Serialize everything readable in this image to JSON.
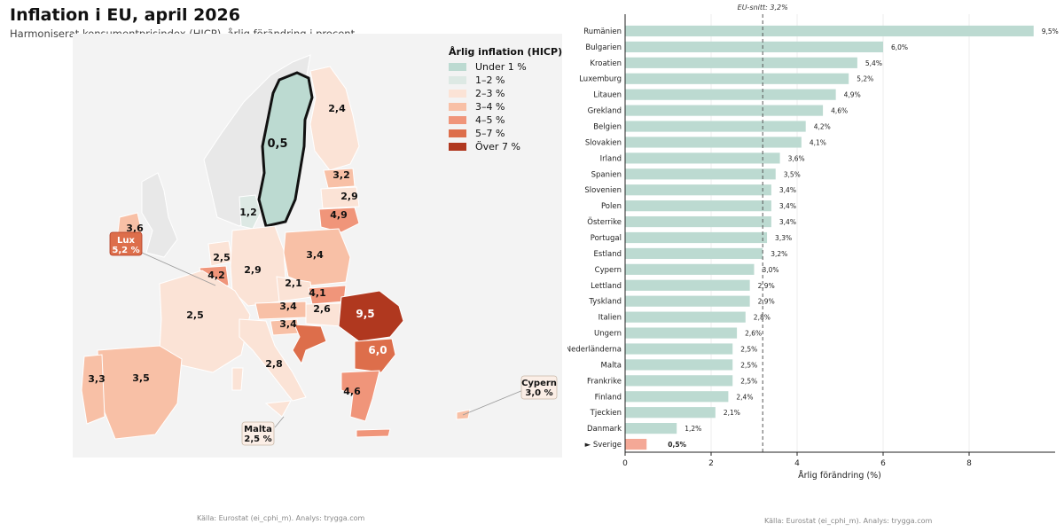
{
  "header": {
    "title": "Inflation i EU, april 2026",
    "subtitle": "Harmoniserat konsumentprisindex (HICP), årlig förändring i procent."
  },
  "legend": {
    "title": "Årlig inflation (HICP)",
    "items": [
      {
        "label": "Under 1 %",
        "color": "#bcdad1"
      },
      {
        "label": "1–2 %",
        "color": "#dde9e4"
      },
      {
        "label": "2–3 %",
        "color": "#fbe3d6"
      },
      {
        "label": "3–4 %",
        "color": "#f8c0a6"
      },
      {
        "label": "4–5 %",
        "color": "#f0957a"
      },
      {
        "label": "5–7 %",
        "color": "#dd6e4b"
      },
      {
        "label": "Över 7 %",
        "color": "#b0381f"
      }
    ]
  },
  "map_labels": [
    {
      "id": "se",
      "text": "0,5"
    },
    {
      "id": "fi",
      "text": "2,4"
    },
    {
      "id": "ee",
      "text": "3,2"
    },
    {
      "id": "lv",
      "text": "2,9"
    },
    {
      "id": "lt",
      "text": "4,9"
    },
    {
      "id": "dk",
      "text": "1,2"
    },
    {
      "id": "ie",
      "text": "3,6"
    },
    {
      "id": "nl",
      "text": "2,5"
    },
    {
      "id": "be",
      "text": "4,2"
    },
    {
      "id": "de",
      "text": "2,9"
    },
    {
      "id": "pl",
      "text": "3,4"
    },
    {
      "id": "cz",
      "text": "2,1"
    },
    {
      "id": "sk",
      "text": "4,1"
    },
    {
      "id": "at",
      "text": "3,4"
    },
    {
      "id": "hu",
      "text": "2,6"
    },
    {
      "id": "si",
      "text": "3,4"
    },
    {
      "id": "fr",
      "text": "2,5"
    },
    {
      "id": "it",
      "text": "2,8"
    },
    {
      "id": "ro",
      "text": "9,5"
    },
    {
      "id": "bg",
      "text": "6,0"
    },
    {
      "id": "gr",
      "text": "4,6"
    },
    {
      "id": "pt",
      "text": "3,3"
    },
    {
      "id": "es",
      "text": "3,5"
    }
  ],
  "callouts": {
    "lux": {
      "name": "Lux",
      "value": "5,2 %"
    },
    "cyprus": {
      "name": "Cypern",
      "value": "3,0 %"
    },
    "malta": {
      "name": "Malta",
      "value": "2,5 %"
    }
  },
  "sources": {
    "left": "Källa: Eurostat (ei_cphi_m). Analys: trygga.com",
    "right": "Källa: Eurostat (ei_cphi_m). Analys: trygga.com"
  },
  "chart_data": {
    "type": "bar",
    "orientation": "horizontal",
    "categories": [
      "Rumänien",
      "Bulgarien",
      "Kroatien",
      "Luxemburg",
      "Litauen",
      "Grekland",
      "Belgien",
      "Slovakien",
      "Irland",
      "Spanien",
      "Slovenien",
      "Polen",
      "Österrike",
      "Portugal",
      "Estland",
      "Cypern",
      "Lettland",
      "Tyskland",
      "Italien",
      "Ungern",
      "Nederländerna",
      "Malta",
      "Frankrike",
      "Finland",
      "Tjeckien",
      "Danmark",
      "► Sverige"
    ],
    "values": [
      9.5,
      6.0,
      5.4,
      5.2,
      4.9,
      4.6,
      4.2,
      4.1,
      3.6,
      3.5,
      3.4,
      3.4,
      3.4,
      3.3,
      3.2,
      3.0,
      2.9,
      2.9,
      2.8,
      2.6,
      2.5,
      2.5,
      2.5,
      2.4,
      2.1,
      1.2,
      0.5
    ],
    "value_labels": [
      "9,5%",
      "6,0%",
      "5,4%",
      "5,2%",
      "4,9%",
      "4,6%",
      "4,2%",
      "4,1%",
      "3,6%",
      "3,5%",
      "3,4%",
      "3,4%",
      "3,4%",
      "3,3%",
      "3,2%",
      "3,0%",
      "2,9%",
      "2,9%",
      "2,8%",
      "2,6%",
      "2,5%",
      "2,5%",
      "2,5%",
      "2,4%",
      "2,1%",
      "1,2%",
      "0,5%"
    ],
    "highlight": "► Sverige",
    "bar_color": "#bcdad1",
    "highlight_color": "#f4a896",
    "xlabel": "Årlig förändring (%)",
    "xlim": [
      0,
      10
    ],
    "xticks": [
      "0",
      "2",
      "4",
      "6",
      "8"
    ],
    "xtick_values": [
      0,
      2,
      4,
      6,
      8
    ],
    "reference_line": {
      "label": "EU-snitt: 3,2%",
      "value": 3.2
    },
    "grid": "vertical"
  }
}
